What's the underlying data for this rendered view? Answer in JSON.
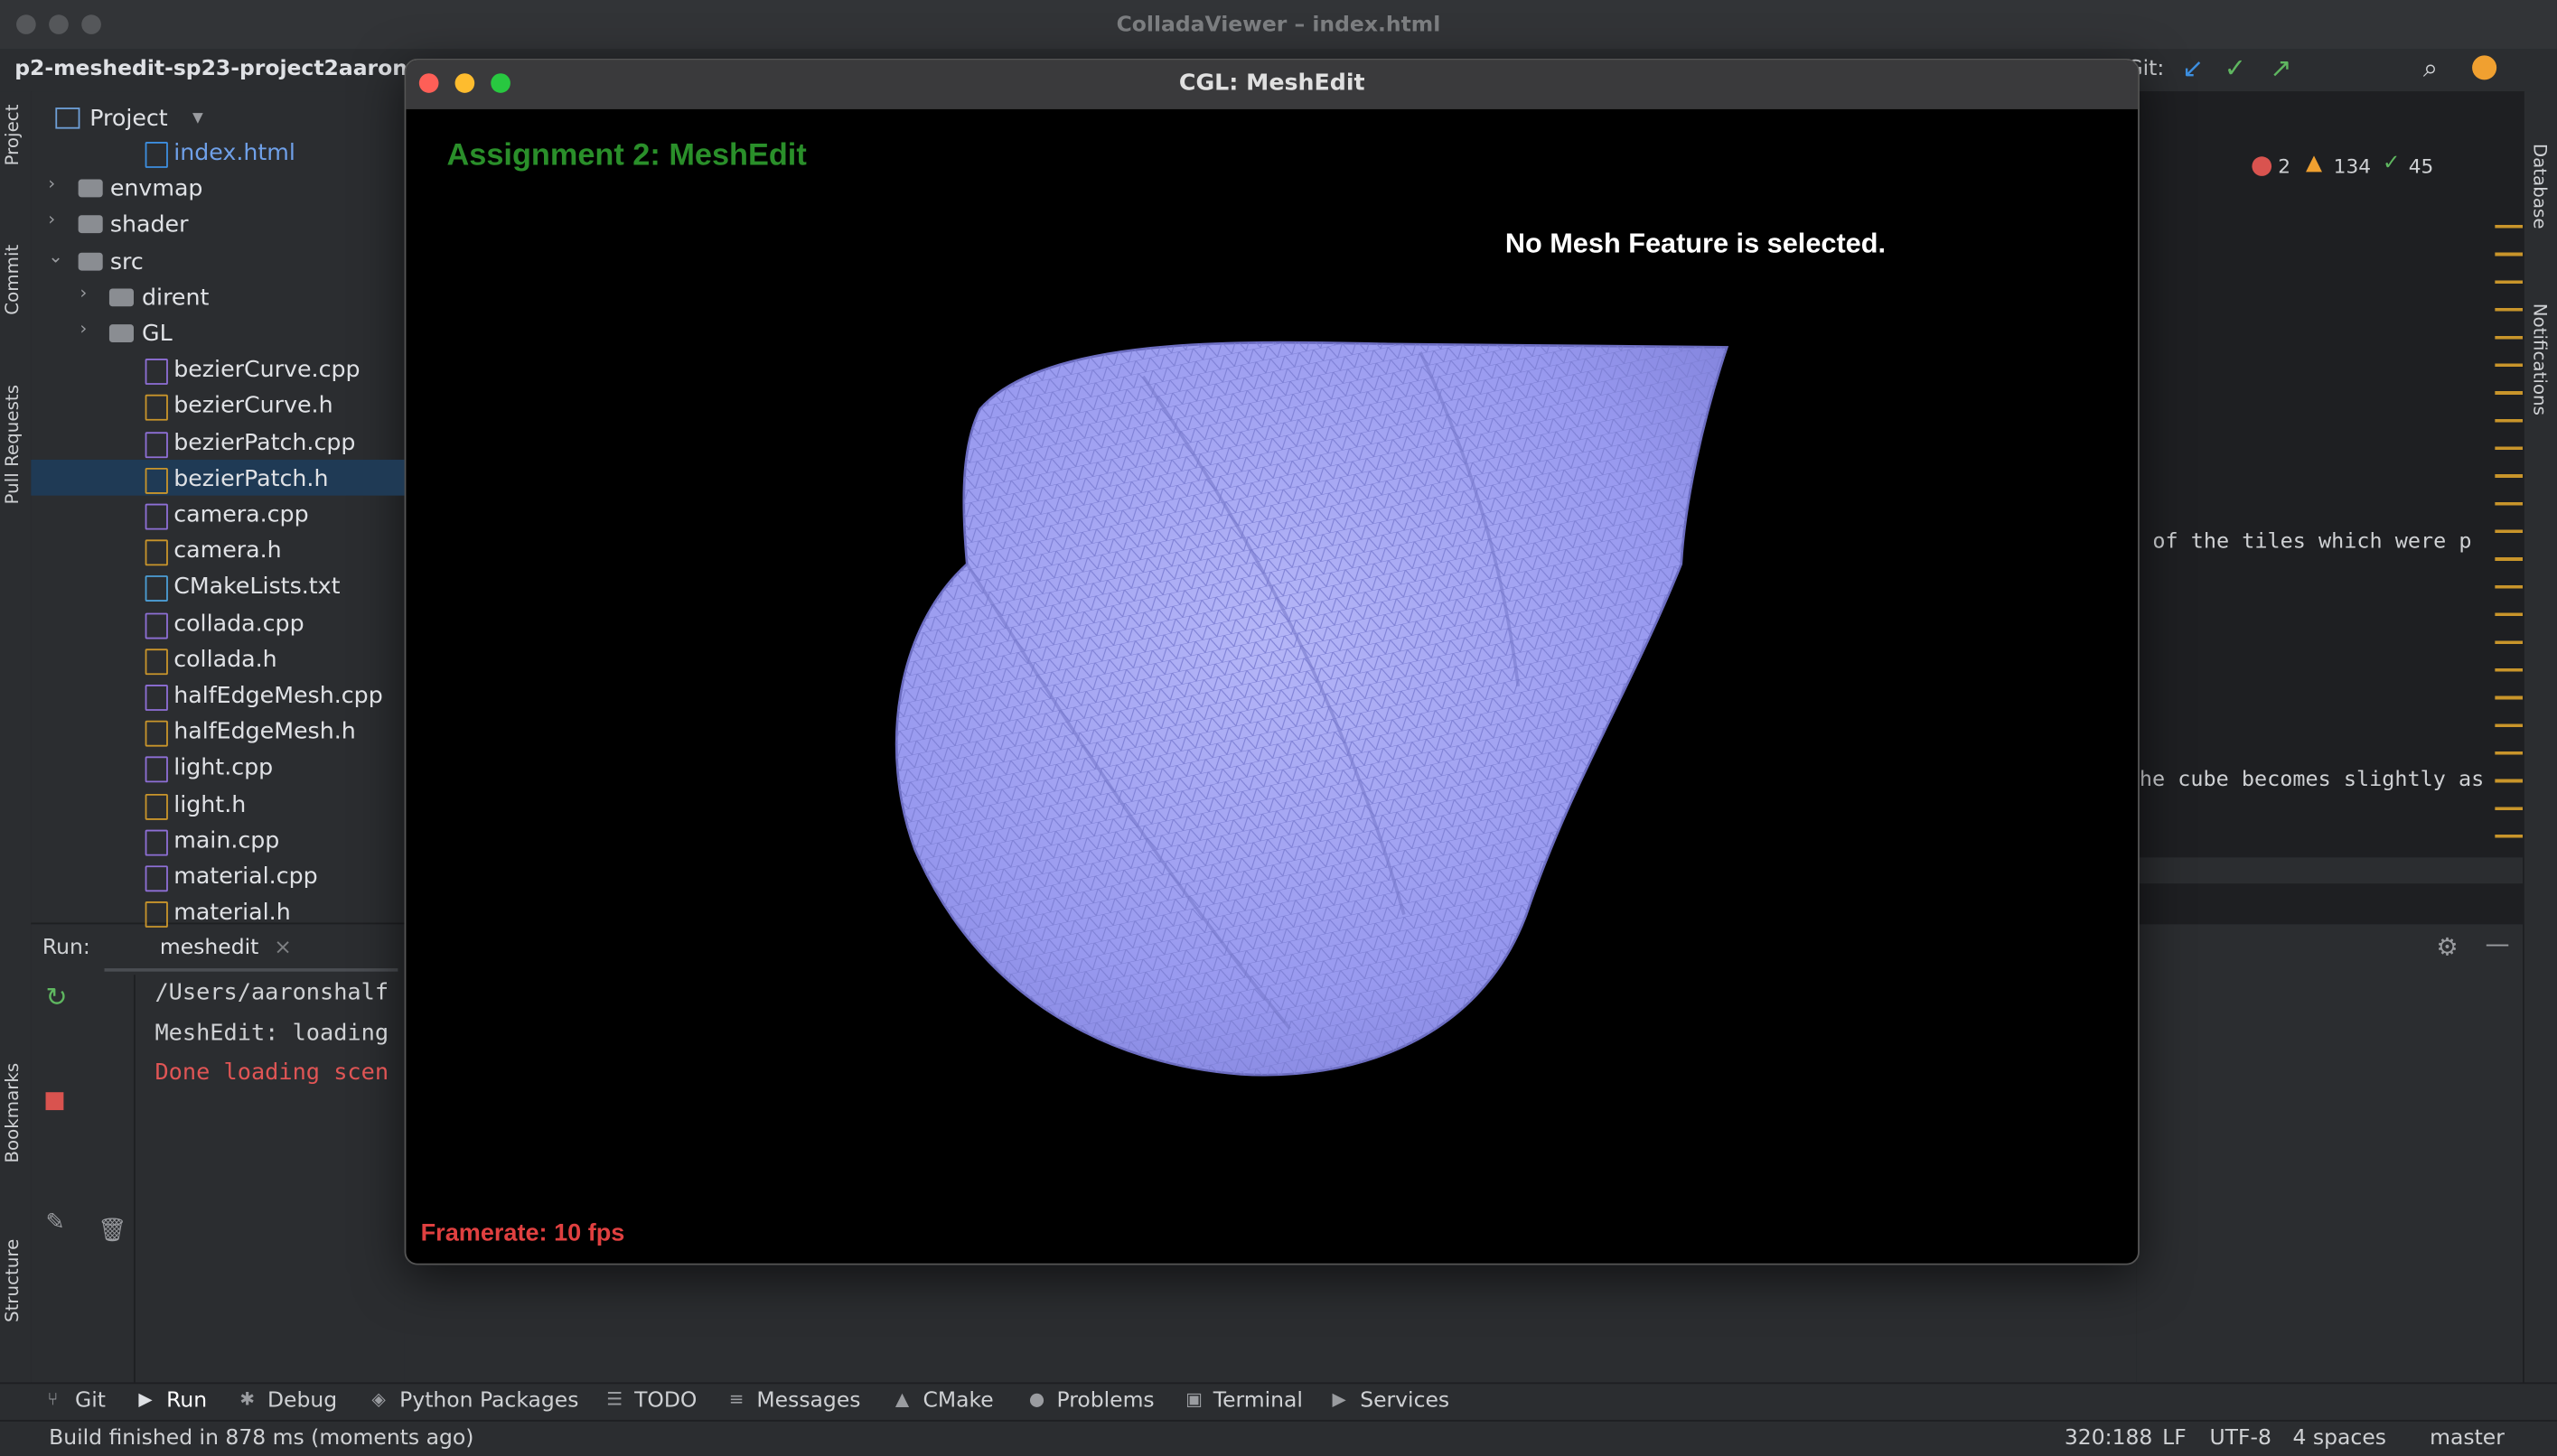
{
  "app_title": "ColladaViewer – index.html",
  "project_name": "p2-meshedit-sp23-project2aaron",
  "git_label": "Git:",
  "project_panel": {
    "title": "Project",
    "items": [
      "index.html",
      "envmap",
      "shader",
      "src",
      "dirent",
      "GL",
      "bezierCurve.cpp",
      "bezierCurve.h",
      "bezierPatch.cpp",
      "bezierPatch.h",
      "camera.cpp",
      "camera.h",
      "CMakeLists.txt",
      "collada.cpp",
      "collada.h",
      "halfEdgeMesh.cpp",
      "halfEdgeMesh.h",
      "light.cpp",
      "light.h",
      "main.cpp",
      "material.cpp",
      "material.h"
    ]
  },
  "inspections": {
    "errors": 2,
    "warnings": 134,
    "ok": 45
  },
  "editor_lines": [
    "of the tiles which were p",
    "he cube becomes slightly as"
  ],
  "run_panel": {
    "label": "Run:",
    "tab": "meshedit",
    "console": [
      "/Users/aaronshalf",
      "MeshEdit: loading",
      "Done loading scen"
    ]
  },
  "viewer": {
    "window_title": "CGL: MeshEdit",
    "heading": "Assignment 2: MeshEdit",
    "status": "No Mesh Feature is selected.",
    "framerate": "Framerate: 10 fps"
  },
  "side_tools_left": [
    "Project",
    "Commit",
    "Pull Requests",
    "Bookmarks",
    "Structure"
  ],
  "side_tools_right": [
    "Database",
    "Notifications"
  ],
  "tool_tabs": [
    "Git",
    "Run",
    "Debug",
    "Python Packages",
    "TODO",
    "Messages",
    "CMake",
    "Problems",
    "Terminal",
    "Services"
  ],
  "status_bar": {
    "message": "Build finished in 878 ms (moments ago)",
    "position": "320:188",
    "line_ending": "LF",
    "encoding": "UTF-8",
    "indent": "4 spaces",
    "branch": "master"
  }
}
